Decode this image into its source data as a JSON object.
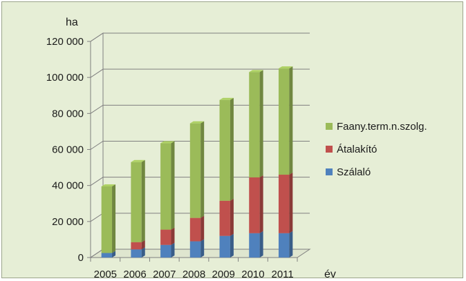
{
  "chart_data": {
    "type": "bar",
    "stacked": true,
    "three_d": true,
    "ylabel": "ha",
    "xlabel": "év",
    "ylim": [
      0,
      120000
    ],
    "y_ticks": [
      "0",
      "20 000",
      "40 000",
      "60 000",
      "80 000",
      "100 000",
      "120 000"
    ],
    "categories": [
      "2005",
      "2006",
      "2007",
      "2008",
      "2009",
      "2010",
      "2011"
    ],
    "series": [
      {
        "name": "Szálaló",
        "color": "#4f81bd",
        "values": [
          2500,
          4500,
          7000,
          9000,
          12000,
          13500,
          13500
        ]
      },
      {
        "name": "Átalakító",
        "color": "#c0504d",
        "values": [
          0,
          4000,
          8500,
          13000,
          19500,
          31000,
          32500
        ]
      },
      {
        "name": "Faany.term.n.szolg.",
        "color": "#9bbb59",
        "values": [
          37000,
          44500,
          48000,
          52500,
          56000,
          58500,
          59000
        ]
      }
    ],
    "legend": {
      "position": "right",
      "order": [
        "Faany.term.n.szolg.",
        "Átalakító",
        "Szálaló"
      ]
    },
    "grid": true
  }
}
